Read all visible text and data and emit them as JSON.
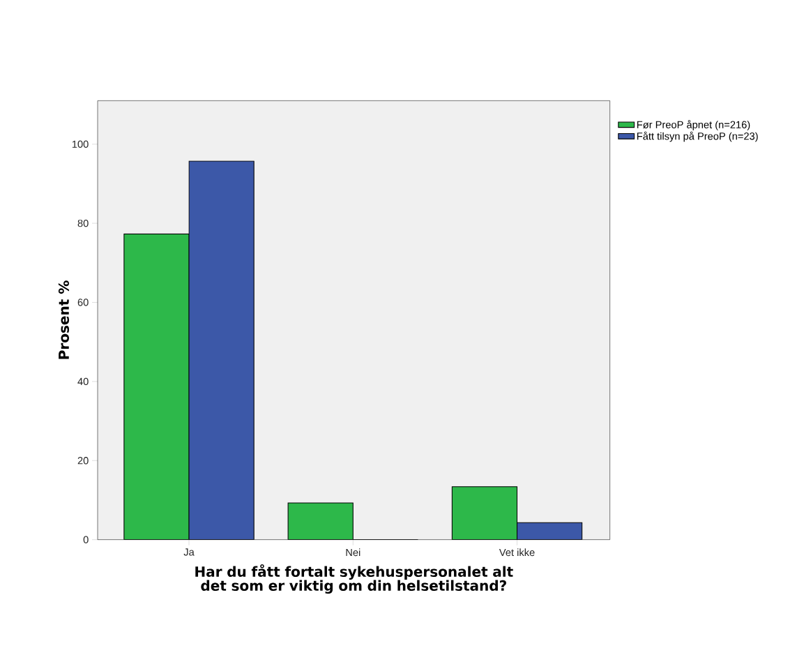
{
  "chart_data": {
    "type": "bar",
    "xlabel": "Har du fått fortalt sykehuspersonalet alt det som er viktig om din helsetilstand?",
    "ylabel": "Prosent %",
    "categories": [
      "Ja",
      "Nei",
      "Vet ikke"
    ],
    "series": [
      {
        "name": "Før PreoP åpnet (n=216)",
        "color": "#2db84a",
        "values": [
          77.3,
          9.3,
          13.4
        ]
      },
      {
        "name": "Fått tilsyn på PreoP (n=23)",
        "color": "#3c58a8",
        "values": [
          95.7,
          0,
          4.3
        ]
      }
    ],
    "ylim": [
      0,
      111
    ],
    "yticks": [
      0,
      20,
      40,
      60,
      80,
      100
    ],
    "grid": false,
    "legend": "top right"
  }
}
